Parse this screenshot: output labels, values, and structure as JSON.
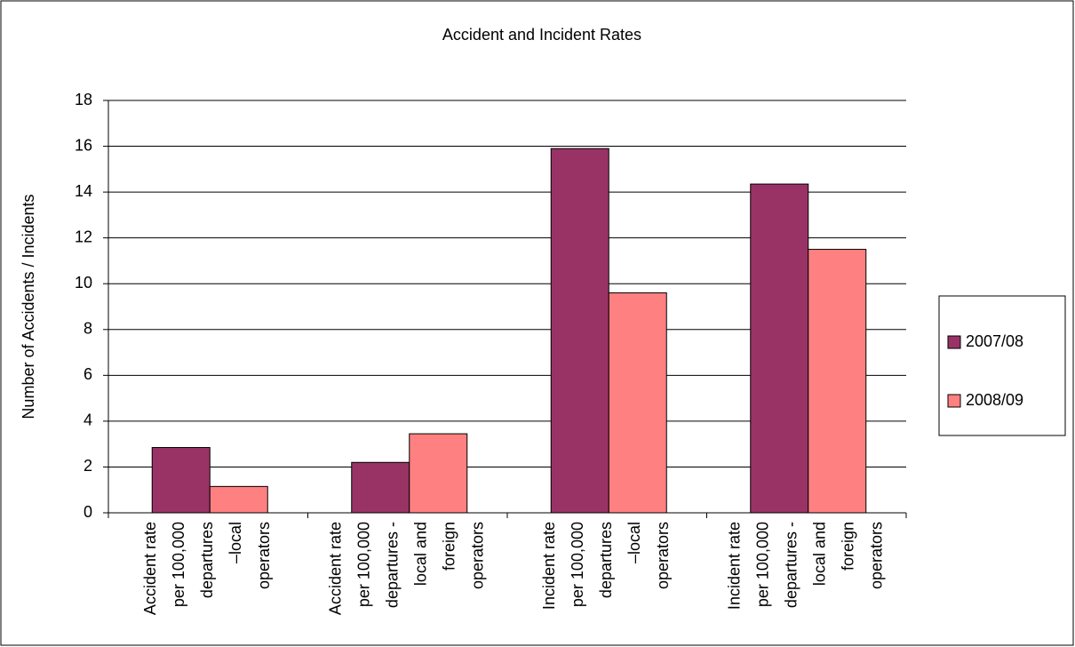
{
  "chart_data": {
    "type": "bar",
    "title": "Accident and Incident Rates",
    "y_label": "Number of Accidents / Incidents",
    "categories": [
      [
        "Accident rate",
        "per 100,000",
        "departures",
        "–local",
        "operators"
      ],
      [
        "Accident rate",
        "per 100,000",
        "departures -",
        "local and",
        "foreign",
        "operators"
      ],
      [
        "Incident rate",
        "per 100,000",
        "departures",
        "–local",
        "operators"
      ],
      [
        "Incident rate",
        "per 100,000",
        "departures -",
        "local and",
        "foreign",
        "operators"
      ]
    ],
    "series": [
      {
        "name": "2007/08",
        "color": "#993366",
        "values": [
          2.85,
          2.2,
          15.9,
          14.35
        ]
      },
      {
        "name": "2008/09",
        "color": "#ff8080",
        "values": [
          1.15,
          3.45,
          9.6,
          11.5
        ]
      }
    ],
    "ylim": [
      0,
      18
    ],
    "yticks": [
      0,
      2,
      4,
      6,
      8,
      10,
      12,
      14,
      16,
      18
    ],
    "grid": true,
    "legend": "right"
  }
}
